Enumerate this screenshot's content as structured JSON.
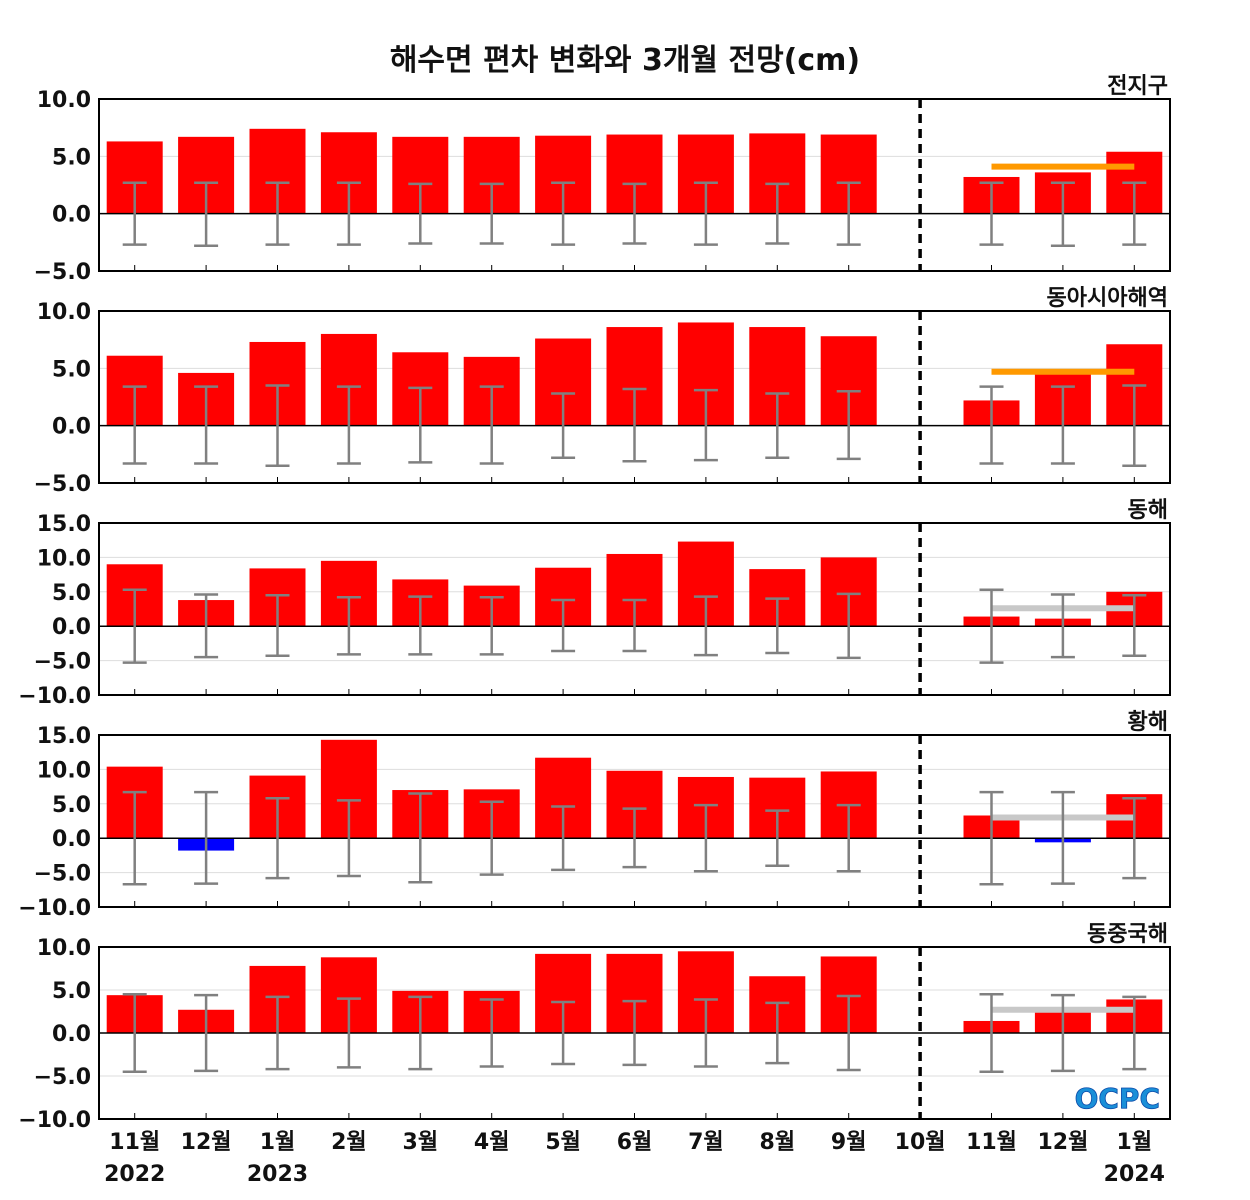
{
  "chart_data": {
    "type": "bar",
    "title": "해수면 편차 변화와 3개월 전망(cm)",
    "categories": [
      "11월",
      "12월",
      "1월",
      "2월",
      "3월",
      "4월",
      "5월",
      "6월",
      "7월",
      "8월",
      "9월",
      "10월",
      "11월",
      "12월",
      "1월"
    ],
    "year_labels": [
      {
        "index": 0,
        "text": "2022"
      },
      {
        "index": 2,
        "text": "2023"
      },
      {
        "index": 14,
        "text": "2024"
      }
    ],
    "forecast_divider_after_category": "10월",
    "colors": {
      "positive": "#ff0000",
      "negative": "#0000ff",
      "errorbar": "#808080",
      "outlook_warm": "#ff9900",
      "outlook_normal": "#c8c8c8"
    },
    "panels": [
      {
        "name": "전지구",
        "ylim": [
          -5,
          10
        ],
        "yticks": [
          "10.0",
          "5.0",
          "0.0",
          "−5.0"
        ],
        "ytick_values": [
          10,
          5,
          0,
          -5
        ],
        "values": [
          6.3,
          6.7,
          7.4,
          7.1,
          6.7,
          6.7,
          6.8,
          6.9,
          6.9,
          7.0,
          6.9,
          null,
          3.2,
          3.6,
          5.4
        ],
        "error_upper": [
          2.7,
          2.7,
          2.7,
          2.7,
          2.6,
          2.6,
          2.7,
          2.6,
          2.7,
          2.6,
          2.7,
          null,
          2.7,
          2.7,
          2.7
        ],
        "error_lower": [
          -2.7,
          -2.8,
          -2.7,
          -2.7,
          -2.6,
          -2.6,
          -2.7,
          -2.6,
          -2.7,
          -2.6,
          -2.7,
          null,
          -2.7,
          -2.8,
          -2.7
        ],
        "outlook": {
          "from": "11월",
          "to": "1월",
          "value": 4.1,
          "color": "outlook_warm"
        }
      },
      {
        "name": "동아시아해역",
        "ylim": [
          -5,
          10
        ],
        "yticks": [
          "10.0",
          "5.0",
          "0.0",
          "−5.0"
        ],
        "ytick_values": [
          10,
          5,
          0,
          -5
        ],
        "values": [
          6.1,
          4.6,
          7.3,
          8.0,
          6.4,
          6.0,
          7.6,
          8.6,
          9.0,
          8.6,
          7.8,
          null,
          2.2,
          4.6,
          7.1
        ],
        "error_upper": [
          3.4,
          3.4,
          3.5,
          3.4,
          3.3,
          3.4,
          2.8,
          3.2,
          3.1,
          2.8,
          3.0,
          null,
          3.4,
          3.4,
          3.5
        ],
        "error_lower": [
          -3.3,
          -3.3,
          -3.5,
          -3.3,
          -3.2,
          -3.3,
          -2.8,
          -3.1,
          -3.0,
          -2.8,
          -2.9,
          null,
          -3.3,
          -3.3,
          -3.5
        ],
        "outlook": {
          "from": "11월",
          "to": "1월",
          "value": 4.7,
          "color": "outlook_warm"
        }
      },
      {
        "name": "동해",
        "ylim": [
          -10,
          15
        ],
        "yticks": [
          "15.0",
          "10.0",
          "5.0",
          "0.0",
          "−5.0",
          "−10.0"
        ],
        "ytick_values": [
          15,
          10,
          5,
          0,
          -5,
          -10
        ],
        "values": [
          9.0,
          3.8,
          8.4,
          9.5,
          6.8,
          5.9,
          8.5,
          10.5,
          12.3,
          8.3,
          10.0,
          null,
          1.4,
          1.1,
          5.0
        ],
        "error_upper": [
          5.3,
          4.6,
          4.5,
          4.2,
          4.3,
          4.2,
          3.8,
          3.8,
          4.3,
          4.0,
          4.7,
          null,
          5.3,
          4.6,
          4.5
        ],
        "error_lower": [
          -5.3,
          -4.5,
          -4.3,
          -4.1,
          -4.1,
          -4.1,
          -3.6,
          -3.6,
          -4.2,
          -3.9,
          -4.6,
          null,
          -5.3,
          -4.5,
          -4.3
        ],
        "outlook": {
          "from": "11월",
          "to": "1월",
          "value": 2.6,
          "color": "outlook_normal"
        }
      },
      {
        "name": "황해",
        "ylim": [
          -10,
          15
        ],
        "yticks": [
          "15.0",
          "10.0",
          "5.0",
          "0.0",
          "−5.0",
          "−10.0"
        ],
        "ytick_values": [
          15,
          10,
          5,
          0,
          -5,
          -10
        ],
        "values": [
          10.4,
          -1.8,
          9.1,
          14.3,
          7.0,
          7.1,
          11.7,
          9.8,
          8.9,
          8.8,
          9.7,
          null,
          3.3,
          -0.6,
          6.4
        ],
        "error_upper": [
          6.7,
          6.7,
          5.8,
          5.5,
          6.5,
          5.3,
          4.6,
          4.3,
          4.8,
          4.0,
          4.8,
          null,
          6.7,
          6.7,
          5.8
        ],
        "error_lower": [
          -6.7,
          -6.6,
          -5.8,
          -5.5,
          -6.4,
          -5.3,
          -4.6,
          -4.2,
          -4.8,
          -4.0,
          -4.8,
          null,
          -6.7,
          -6.6,
          -5.8
        ],
        "outlook": {
          "from": "11월",
          "to": "1월",
          "value": 3.0,
          "color": "outlook_normal"
        }
      },
      {
        "name": "동중국해",
        "ylim": [
          -10,
          10
        ],
        "yticks": [
          "10.0",
          "5.0",
          "0.0",
          "−5.0",
          "−10.0"
        ],
        "ytick_values": [
          10,
          5,
          0,
          -5,
          -10
        ],
        "values": [
          4.4,
          2.7,
          7.8,
          8.8,
          4.9,
          4.9,
          9.2,
          9.2,
          9.5,
          6.6,
          8.9,
          null,
          1.4,
          2.8,
          3.9
        ],
        "error_upper": [
          4.5,
          4.4,
          4.2,
          4.0,
          4.2,
          3.9,
          3.6,
          3.7,
          3.9,
          3.5,
          4.3,
          null,
          4.5,
          4.4,
          4.2
        ],
        "error_lower": [
          -4.5,
          -4.4,
          -4.2,
          -4.0,
          -4.2,
          -3.9,
          -3.6,
          -3.7,
          -3.9,
          -3.5,
          -4.3,
          null,
          -4.5,
          -4.4,
          -4.2
        ],
        "outlook": {
          "from": "11월",
          "to": "1월",
          "value": 2.7,
          "color": "outlook_normal"
        }
      }
    ]
  },
  "logo": {
    "text": "OCPC",
    "color_top": "#1a8fd8",
    "color_bottom": "#0b4aa8"
  }
}
